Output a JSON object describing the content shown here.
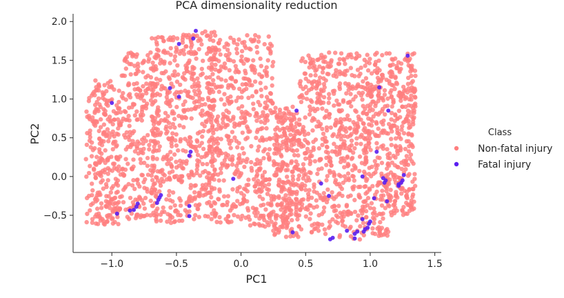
{
  "chart_data": {
    "type": "scatter",
    "title": "PCA dimensionality reduction",
    "xlabel": "PC1",
    "ylabel": "PC2",
    "xlim": [
      -1.3,
      1.55
    ],
    "ylim": [
      -0.98,
      2.1
    ],
    "xticks": [
      -1.0,
      -0.5,
      0.0,
      0.5,
      1.0,
      1.5
    ],
    "xtick_labels": [
      "−1.0",
      "−0.5",
      "0.0",
      "0.5",
      "1.0",
      "1.5"
    ],
    "yticks": [
      -0.5,
      0.0,
      0.5,
      1.0,
      1.5,
      2.0
    ],
    "ytick_labels": [
      "−0.5",
      "0.0",
      "0.5",
      "1.0",
      "1.5",
      "2.0"
    ],
    "grid": false,
    "legend": {
      "title": "Class",
      "placement": "right"
    },
    "series": [
      {
        "name": "Non-fatal injury",
        "color": "#ff7f7f",
        "clusters": [
          {
            "x": [
              -1.2,
              -0.95
            ],
            "y": [
              -0.62,
              1.25
            ]
          },
          {
            "x": [
              -0.95,
              -0.65
            ],
            "y": [
              -0.55,
              1.6
            ]
          },
          {
            "x": [
              -0.7,
              -0.45
            ],
            "y": [
              -0.6,
              1.8
            ]
          },
          {
            "x": [
              -0.45,
              -0.2
            ],
            "y": [
              -0.55,
              1.9
            ]
          },
          {
            "x": [
              -0.25,
              0.0
            ],
            "y": [
              -0.6,
              1.8
            ]
          },
          {
            "x": [
              0.0,
              0.25
            ],
            "y": [
              -0.65,
              1.85
            ]
          },
          {
            "x": [
              0.25,
              0.45
            ],
            "y": [
              -0.78,
              0.9
            ]
          },
          {
            "x": [
              0.45,
              0.7
            ],
            "y": [
              -0.75,
              1.6
            ]
          },
          {
            "x": [
              0.7,
              0.95
            ],
            "y": [
              -0.82,
              1.6
            ]
          },
          {
            "x": [
              0.95,
              1.15
            ],
            "y": [
              -0.8,
              1.6
            ]
          },
          {
            "x": [
              1.15,
              1.35
            ],
            "y": [
              -0.5,
              1.6
            ]
          }
        ],
        "points": [
          [
            -1.15,
            -0.55
          ],
          [
            -1.1,
            0.2
          ],
          [
            -1.05,
            0.8
          ],
          [
            -1.0,
            1.15
          ],
          [
            -0.9,
            1.3
          ],
          [
            -0.85,
            1.45
          ],
          [
            -0.8,
            -0.3
          ],
          [
            -0.75,
            0.5
          ],
          [
            -0.7,
            1.6
          ],
          [
            -0.6,
            1.75
          ],
          [
            -0.55,
            -0.5
          ],
          [
            -0.5,
            0.4
          ],
          [
            -0.45,
            1.8
          ],
          [
            -0.4,
            -0.45
          ],
          [
            -0.35,
            0.9
          ],
          [
            -0.3,
            1.85
          ],
          [
            -0.2,
            -0.5
          ],
          [
            -0.15,
            0.3
          ],
          [
            -0.1,
            1.7
          ],
          [
            0.0,
            -0.55
          ],
          [
            0.05,
            0.5
          ],
          [
            0.1,
            1.75
          ],
          [
            0.15,
            0.2
          ],
          [
            0.2,
            1.3
          ],
          [
            0.25,
            -0.7
          ],
          [
            0.3,
            0.6
          ],
          [
            0.35,
            -0.3
          ],
          [
            0.4,
            0.9
          ],
          [
            0.45,
            -0.5
          ],
          [
            0.5,
            0.3
          ],
          [
            0.55,
            1.2
          ],
          [
            0.6,
            -0.7
          ],
          [
            0.65,
            0.5
          ],
          [
            0.7,
            1.5
          ],
          [
            0.75,
            -0.6
          ],
          [
            0.8,
            0.2
          ],
          [
            0.85,
            1.4
          ],
          [
            0.9,
            -0.7
          ],
          [
            0.95,
            0.6
          ],
          [
            1.0,
            1.1
          ],
          [
            1.05,
            -0.5
          ],
          [
            1.1,
            0.4
          ],
          [
            1.15,
            1.2
          ],
          [
            1.2,
            -0.2
          ],
          [
            1.25,
            0.9
          ],
          [
            1.3,
            1.5
          ],
          [
            1.35,
            1.3
          ]
        ]
      },
      {
        "name": "Fatal injury",
        "color": "#5a1ff0",
        "points": [
          [
            -0.35,
            1.88
          ],
          [
            -0.37,
            1.78
          ],
          [
            -0.48,
            1.71
          ],
          [
            -0.55,
            1.14
          ],
          [
            -0.48,
            1.03
          ],
          [
            -1.0,
            0.95
          ],
          [
            -0.39,
            0.32
          ],
          [
            -0.4,
            0.27
          ],
          [
            -0.06,
            -0.03
          ],
          [
            0.43,
            0.85
          ],
          [
            1.07,
            1.15
          ],
          [
            1.14,
            0.85
          ],
          [
            1.05,
            0.32
          ],
          [
            1.29,
            1.56
          ],
          [
            -0.62,
            -0.24
          ],
          [
            -0.63,
            -0.27
          ],
          [
            -0.64,
            -0.3
          ],
          [
            -0.65,
            -0.34
          ],
          [
            -0.8,
            -0.35
          ],
          [
            -0.81,
            -0.39
          ],
          [
            -0.83,
            -0.43
          ],
          [
            -0.86,
            -0.44
          ],
          [
            -0.96,
            -0.48
          ],
          [
            -0.4,
            -0.38
          ],
          [
            -0.4,
            -0.51
          ],
          [
            0.62,
            -0.09
          ],
          [
            0.68,
            -0.25
          ],
          [
            0.4,
            -0.72
          ],
          [
            0.82,
            -0.7
          ],
          [
            0.69,
            -0.81
          ],
          [
            0.71,
            -0.79
          ],
          [
            0.88,
            -0.74
          ],
          [
            0.88,
            -0.8
          ],
          [
            0.9,
            -0.71
          ],
          [
            0.94,
            -0.55
          ],
          [
            0.95,
            -0.71
          ],
          [
            0.96,
            -0.68
          ],
          [
            0.98,
            -0.66
          ],
          [
            0.99,
            -0.61
          ],
          [
            1.0,
            -0.58
          ],
          [
            0.94,
            0.0
          ],
          [
            1.03,
            -0.28
          ],
          [
            1.1,
            -0.02
          ],
          [
            1.12,
            -0.05
          ],
          [
            1.11,
            -0.08
          ],
          [
            1.13,
            -0.32
          ],
          [
            1.22,
            -0.1
          ],
          [
            1.24,
            -0.08
          ],
          [
            1.25,
            -0.05
          ],
          [
            1.26,
            0.02
          ],
          [
            1.22,
            -0.12
          ]
        ]
      }
    ]
  }
}
